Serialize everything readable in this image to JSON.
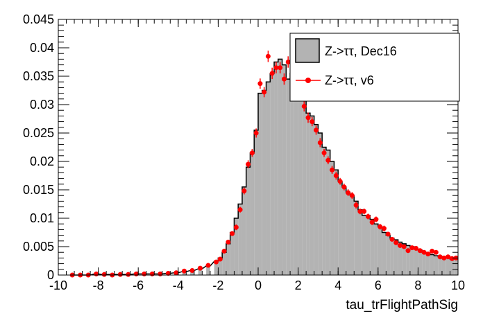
{
  "chart_data": {
    "type": "histogram",
    "xlabel": "tau_trFlightPathSig",
    "ylabel": "",
    "xlim": [
      -10,
      10
    ],
    "ylim": [
      0,
      0.045
    ],
    "x_ticks": [
      -10,
      -8,
      -6,
      -4,
      -2,
      0,
      2,
      4,
      6,
      8,
      10
    ],
    "y_ticks": [
      0,
      0.005,
      0.01,
      0.015,
      0.02,
      0.025,
      0.03,
      0.035,
      0.04,
      0.045
    ],
    "x_tick_labels": [
      "-10",
      "-8",
      "-6",
      "-4",
      "-2",
      "0",
      "2",
      "4",
      "6",
      "8",
      "10"
    ],
    "y_tick_labels": [
      "0",
      "0.005",
      "0.01",
      "0.015",
      "0.02",
      "0.025",
      "0.03",
      "0.035",
      "0.04",
      "0.045"
    ],
    "bin_width": 0.2,
    "series": [
      {
        "name": "Z->ττ, Dec16",
        "style": "filled-histogram",
        "fill_color": "#b3b3b3",
        "line_color": "#000000",
        "bins": [
          [
            -9.4,
            0.0
          ],
          [
            -9.0,
            0.0
          ],
          [
            -8.6,
            0.0
          ],
          [
            -8.2,
            0.0002
          ],
          [
            -7.8,
            0.0001
          ],
          [
            -7.4,
            0.0001
          ],
          [
            -7.0,
            0.0001
          ],
          [
            -6.6,
            0.0001
          ],
          [
            -6.2,
            0.0002
          ],
          [
            -5.8,
            0.0002
          ],
          [
            -5.4,
            0.0002
          ],
          [
            -5.0,
            0.0002
          ],
          [
            -4.6,
            0.0003
          ],
          [
            -4.2,
            0.0004
          ],
          [
            -3.8,
            0.0006
          ],
          [
            -3.4,
            0.0008
          ],
          [
            -3.0,
            0.0011
          ],
          [
            -2.6,
            0.0016
          ],
          [
            -2.2,
            0.0024
          ],
          [
            -2.0,
            0.003
          ],
          [
            -1.8,
            0.004
          ],
          [
            -1.6,
            0.0055
          ],
          [
            -1.4,
            0.0075
          ],
          [
            -1.2,
            0.01
          ],
          [
            -1.0,
            0.0125
          ],
          [
            -0.8,
            0.0155
          ],
          [
            -0.6,
            0.019
          ],
          [
            -0.4,
            0.0215
          ],
          [
            -0.2,
            0.0255
          ],
          [
            0.0,
            0.032
          ],
          [
            0.2,
            0.0325
          ],
          [
            0.4,
            0.034
          ],
          [
            0.6,
            0.0355
          ],
          [
            0.8,
            0.0375
          ],
          [
            1.0,
            0.038
          ],
          [
            1.2,
            0.037
          ],
          [
            1.4,
            0.0345
          ],
          [
            1.6,
            0.0355
          ],
          [
            1.8,
            0.0335
          ],
          [
            2.0,
            0.0345
          ],
          [
            2.2,
            0.031
          ],
          [
            2.4,
            0.0285
          ],
          [
            2.6,
            0.028
          ],
          [
            2.8,
            0.0265
          ],
          [
            3.0,
            0.025
          ],
          [
            3.2,
            0.0225
          ],
          [
            3.4,
            0.022
          ],
          [
            3.6,
            0.02
          ],
          [
            3.8,
            0.0185
          ],
          [
            4.0,
            0.0165
          ],
          [
            4.2,
            0.0155
          ],
          [
            4.4,
            0.0145
          ],
          [
            4.6,
            0.014
          ],
          [
            4.8,
            0.013
          ],
          [
            5.0,
            0.0115
          ],
          [
            5.2,
            0.0105
          ],
          [
            5.4,
            0.0105
          ],
          [
            5.6,
            0.0098
          ],
          [
            5.8,
            0.009
          ],
          [
            6.0,
            0.0085
          ],
          [
            6.2,
            0.0075
          ],
          [
            6.4,
            0.007
          ],
          [
            6.6,
            0.0065
          ],
          [
            6.8,
            0.0062
          ],
          [
            7.0,
            0.0058
          ],
          [
            7.2,
            0.0055
          ],
          [
            7.4,
            0.0052
          ],
          [
            7.6,
            0.005
          ],
          [
            7.8,
            0.0046
          ],
          [
            8.0,
            0.0044
          ],
          [
            8.2,
            0.004
          ],
          [
            8.4,
            0.0038
          ],
          [
            8.6,
            0.0036
          ],
          [
            8.8,
            0.0034
          ],
          [
            9.0,
            0.0033
          ],
          [
            9.2,
            0.003
          ],
          [
            9.4,
            0.0032
          ],
          [
            9.6,
            0.0028
          ],
          [
            9.8,
            0.003
          ]
        ]
      },
      {
        "name": "Z->ττ, v6",
        "style": "points-with-errors",
        "color": "#ff0000",
        "points": [
          [
            -9.3,
            0.0,
            0.0001
          ],
          [
            -8.9,
            0.0,
            0.0001
          ],
          [
            -8.5,
            0.0,
            0.0001
          ],
          [
            -8.1,
            0.0002,
            0.0001
          ],
          [
            -7.7,
            0.0001,
            0.0001
          ],
          [
            -7.3,
            0.0,
            0.0001
          ],
          [
            -6.9,
            0.0001,
            0.0001
          ],
          [
            -6.5,
            0.0001,
            0.0001
          ],
          [
            -6.1,
            0.0002,
            0.0001
          ],
          [
            -5.7,
            0.0002,
            0.0001
          ],
          [
            -5.3,
            0.0002,
            0.0001
          ],
          [
            -4.9,
            0.0002,
            0.0001
          ],
          [
            -4.5,
            0.0003,
            0.0001
          ],
          [
            -4.1,
            0.0004,
            0.0001
          ],
          [
            -3.7,
            0.0007,
            0.0002
          ],
          [
            -3.3,
            0.0008,
            0.0002
          ],
          [
            -2.9,
            0.0012,
            0.0002
          ],
          [
            -2.5,
            0.0017,
            0.0002
          ],
          [
            -2.1,
            0.0023,
            0.0003
          ],
          [
            -1.9,
            0.0028,
            0.0003
          ],
          [
            -1.7,
            0.0042,
            0.0003
          ],
          [
            -1.5,
            0.0058,
            0.0004
          ],
          [
            -1.3,
            0.0073,
            0.0004
          ],
          [
            -1.1,
            0.0084,
            0.0005
          ],
          [
            -0.9,
            0.0115,
            0.0005
          ],
          [
            -0.7,
            0.0148,
            0.0006
          ],
          [
            -0.5,
            0.0195,
            0.0007
          ],
          [
            -0.3,
            0.0215,
            0.0007
          ],
          [
            -0.1,
            0.025,
            0.0008
          ],
          [
            0.1,
            0.0337,
            0.0009
          ],
          [
            0.3,
            0.0322,
            0.0009
          ],
          [
            0.5,
            0.0385,
            0.001
          ],
          [
            0.7,
            0.0355,
            0.001
          ],
          [
            0.9,
            0.0365,
            0.001
          ],
          [
            1.1,
            0.0365,
            0.001
          ],
          [
            1.3,
            0.0345,
            0.001
          ],
          [
            1.5,
            0.0375,
            0.001
          ],
          [
            1.7,
            0.0328,
            0.0009
          ],
          [
            1.9,
            0.0343,
            0.0009
          ],
          [
            2.1,
            0.034,
            0.0009
          ],
          [
            2.3,
            0.0297,
            0.0009
          ],
          [
            2.5,
            0.0277,
            0.0009
          ],
          [
            2.7,
            0.027,
            0.0008
          ],
          [
            2.9,
            0.0255,
            0.0008
          ],
          [
            3.1,
            0.0233,
            0.0008
          ],
          [
            3.3,
            0.0215,
            0.0007
          ],
          [
            3.5,
            0.0202,
            0.0007
          ],
          [
            3.7,
            0.0185,
            0.0007
          ],
          [
            3.9,
            0.0175,
            0.0007
          ],
          [
            4.1,
            0.0165,
            0.0006
          ],
          [
            4.3,
            0.0155,
            0.0006
          ],
          [
            4.5,
            0.0145,
            0.0006
          ],
          [
            4.7,
            0.014,
            0.0006
          ],
          [
            4.9,
            0.0123,
            0.0006
          ],
          [
            5.1,
            0.0112,
            0.0005
          ],
          [
            5.3,
            0.0112,
            0.0005
          ],
          [
            5.5,
            0.0103,
            0.0005
          ],
          [
            5.7,
            0.0093,
            0.0005
          ],
          [
            5.9,
            0.0098,
            0.0005
          ],
          [
            6.1,
            0.0085,
            0.0005
          ],
          [
            6.3,
            0.0082,
            0.0005
          ],
          [
            6.5,
            0.0072,
            0.0004
          ],
          [
            6.7,
            0.0063,
            0.0004
          ],
          [
            6.9,
            0.0057,
            0.0004
          ],
          [
            7.1,
            0.0052,
            0.0004
          ],
          [
            7.3,
            0.005,
            0.0004
          ],
          [
            7.5,
            0.0043,
            0.0004
          ],
          [
            7.7,
            0.0048,
            0.0004
          ],
          [
            7.9,
            0.0047,
            0.0004
          ],
          [
            8.1,
            0.0043,
            0.0003
          ],
          [
            8.3,
            0.004,
            0.0003
          ],
          [
            8.5,
            0.0037,
            0.0003
          ],
          [
            8.7,
            0.0042,
            0.0003
          ],
          [
            8.9,
            0.004,
            0.0003
          ],
          [
            9.1,
            0.0032,
            0.0003
          ],
          [
            9.3,
            0.003,
            0.0003
          ],
          [
            9.5,
            0.0032,
            0.0003
          ],
          [
            9.7,
            0.0029,
            0.0003
          ],
          [
            9.9,
            0.003,
            0.0003
          ]
        ]
      }
    ],
    "legend": {
      "placement": "top-right",
      "entries": [
        "Z->ττ, Dec16",
        "Z->ττ, v6"
      ]
    }
  }
}
